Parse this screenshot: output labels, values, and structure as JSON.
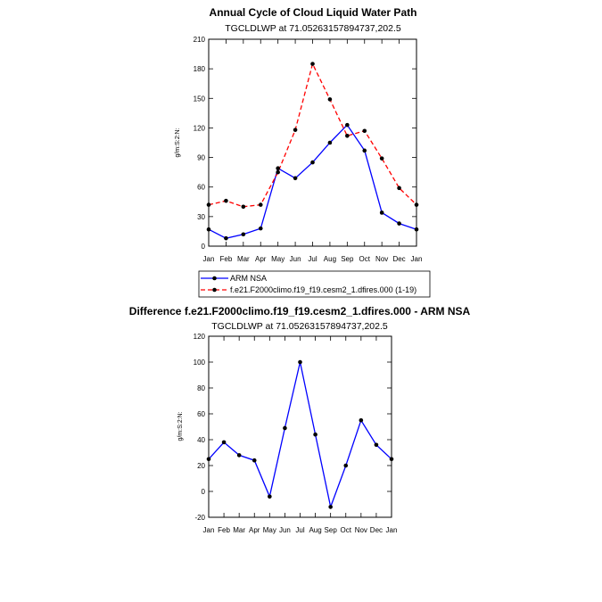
{
  "chart_data": [
    {
      "type": "line",
      "title": "Annual Cycle of Cloud Liquid Water Path",
      "subtitle": "TGCLDLWP at 71.05263157894737,202.5",
      "ylabel": "g/m:S:2:N:",
      "xlabel": "",
      "ylim": [
        0,
        210
      ],
      "yticks": [
        0,
        30,
        60,
        90,
        120,
        150,
        180,
        210
      ],
      "categories": [
        "Jan",
        "Feb",
        "Mar",
        "Apr",
        "May",
        "Jun",
        "Jul",
        "Aug",
        "Sep",
        "Oct",
        "Nov",
        "Dec",
        "Jan"
      ],
      "series": [
        {
          "name": "ARM NSA",
          "color": "#0000ff",
          "dash": "solid",
          "values": [
            17,
            8,
            12,
            18,
            79,
            69,
            85,
            105,
            123,
            97,
            34,
            23,
            17
          ]
        },
        {
          "name": "f.e21.F2000climo.f19_f19.cesm2_1.dfires.000 (1-19)",
          "color": "#ff0000",
          "dash": "dashed",
          "values": [
            42,
            46,
            40,
            42,
            75,
            118,
            185,
            149,
            112,
            117,
            89,
            59,
            42
          ]
        }
      ]
    },
    {
      "type": "line",
      "title": "Difference f.e21.F2000climo.f19_f19.cesm2_1.dfires.000 - ARM NSA",
      "subtitle": "TGCLDLWP at 71.05263157894737,202.5",
      "ylabel": "g/m:S:2:N:",
      "xlabel": "",
      "ylim": [
        -20,
        120
      ],
      "yticks": [
        -20,
        0,
        20,
        40,
        60,
        80,
        100,
        120
      ],
      "categories": [
        "Jan",
        "Feb",
        "Mar",
        "Apr",
        "May",
        "Jun",
        "Jul",
        "Aug",
        "Sep",
        "Oct",
        "Nov",
        "Dec",
        "Jan"
      ],
      "series": [
        {
          "name": "Difference",
          "color": "#0000ff",
          "dash": "solid",
          "values": [
            25,
            38,
            28,
            24,
            -4,
            49,
            100,
            44,
            -12,
            20,
            55,
            36,
            25
          ]
        }
      ]
    }
  ]
}
